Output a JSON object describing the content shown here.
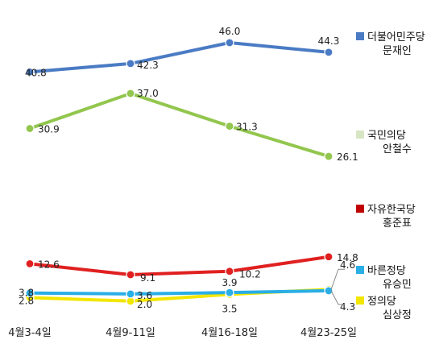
{
  "chart_data": {
    "type": "line",
    "title": "",
    "xlabel": "",
    "ylabel": "",
    "categories": [
      "4월3-4일",
      "4월9-11일",
      "4월16-18일",
      "4월23-25일"
    ],
    "ylim": [
      0,
      50
    ],
    "grid": false,
    "legend_position": "right",
    "series": [
      {
        "name": "더불어민주당 문재인",
        "legend_lines": [
          "더불어민주당",
          "문재인"
        ],
        "color": "#4a7bc4",
        "values": [
          40.8,
          42.3,
          46.0,
          44.3
        ],
        "labels": [
          "40.8",
          "42.3",
          "46.0",
          "44.3"
        ]
      },
      {
        "name": "국민의당 안철수",
        "legend_lines": [
          "국민의당",
          "안철수"
        ],
        "color": "#92c64e",
        "legend_color": "#d6e6c2",
        "values": [
          30.9,
          37.0,
          31.3,
          26.1
        ],
        "labels": [
          "30.9",
          "37.0",
          "31.3",
          "26.1"
        ]
      },
      {
        "name": "자유한국당 홍준표",
        "legend_lines": [
          "자유한국당",
          "홍준표"
        ],
        "color": "#e02020",
        "legend_color": "#c00000",
        "values": [
          12.6,
          9.1,
          10.2,
          14.8
        ],
        "labels": [
          "12.6",
          "9.1",
          "10.2",
          "14.8"
        ]
      },
      {
        "name": "바른정당 유승민",
        "legend_lines": [
          "바른정당",
          "유승민"
        ],
        "color": "#29aee6",
        "values": [
          3.8,
          3.6,
          3.9,
          4.3
        ],
        "labels": [
          "3.8",
          "3.6",
          "3.9",
          "4.3"
        ]
      },
      {
        "name": "정의당 심상정",
        "legend_lines": [
          "정의당",
          "심상정"
        ],
        "color": "#f2e600",
        "values": [
          2.8,
          2.0,
          3.5,
          4.6
        ],
        "labels": [
          "2.8",
          "2.0",
          "3.5",
          "4.6"
        ]
      }
    ]
  }
}
